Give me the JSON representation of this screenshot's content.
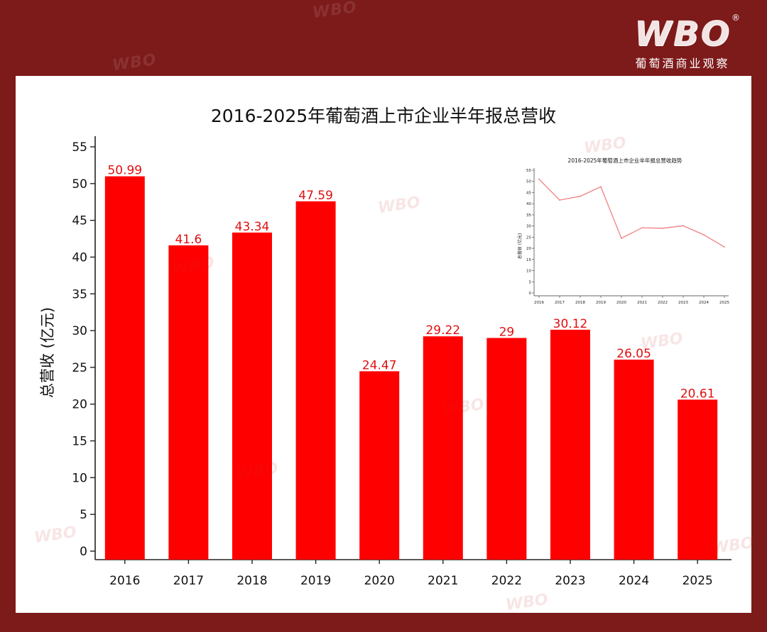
{
  "brand": {
    "logo_text": "WBO",
    "registered_mark": "®",
    "subtitle": "葡萄酒商业观察"
  },
  "colors": {
    "frame": "#7d1a1a",
    "bar": "#ff0000",
    "label": "#e01010",
    "inset_line": "#f08080"
  },
  "chart_data": [
    {
      "type": "bar",
      "title": "2016-2025年葡萄酒上市企业半年报总营收",
      "xlabel": "",
      "ylabel": "总营收 (亿元)",
      "categories": [
        "2016",
        "2017",
        "2018",
        "2019",
        "2020",
        "2021",
        "2022",
        "2023",
        "2024",
        "2025"
      ],
      "values": [
        50.99,
        41.6,
        43.34,
        47.59,
        24.47,
        29.22,
        29,
        30.12,
        26.05,
        20.61
      ],
      "value_labels": [
        "50.99",
        "41.6",
        "43.34",
        "47.59",
        "24.47",
        "29.22",
        "29",
        "30.12",
        "26.05",
        "20.61"
      ],
      "ylim": [
        0,
        55
      ],
      "yticks": [
        "0",
        "5",
        "10",
        "15",
        "20",
        "25",
        "30",
        "35",
        "40",
        "45",
        "50",
        "55"
      ],
      "grid": false
    },
    {
      "type": "line",
      "title": "2016-2025年葡萄酒上市企业半年报总营收趋势",
      "xlabel": "",
      "ylabel": "总营收 (亿元)",
      "categories": [
        "2016",
        "2017",
        "2018",
        "2019",
        "2020",
        "2021",
        "2022",
        "2023",
        "2024",
        "2025"
      ],
      "values": [
        50.99,
        41.6,
        43.34,
        47.59,
        24.47,
        29.22,
        29,
        30.12,
        26.05,
        20.61
      ],
      "ylim": [
        0,
        55
      ],
      "yticks": [
        "0",
        "5",
        "10",
        "15",
        "20",
        "25",
        "30",
        "35",
        "40",
        "45",
        "50",
        "55"
      ],
      "grid": false
    }
  ]
}
